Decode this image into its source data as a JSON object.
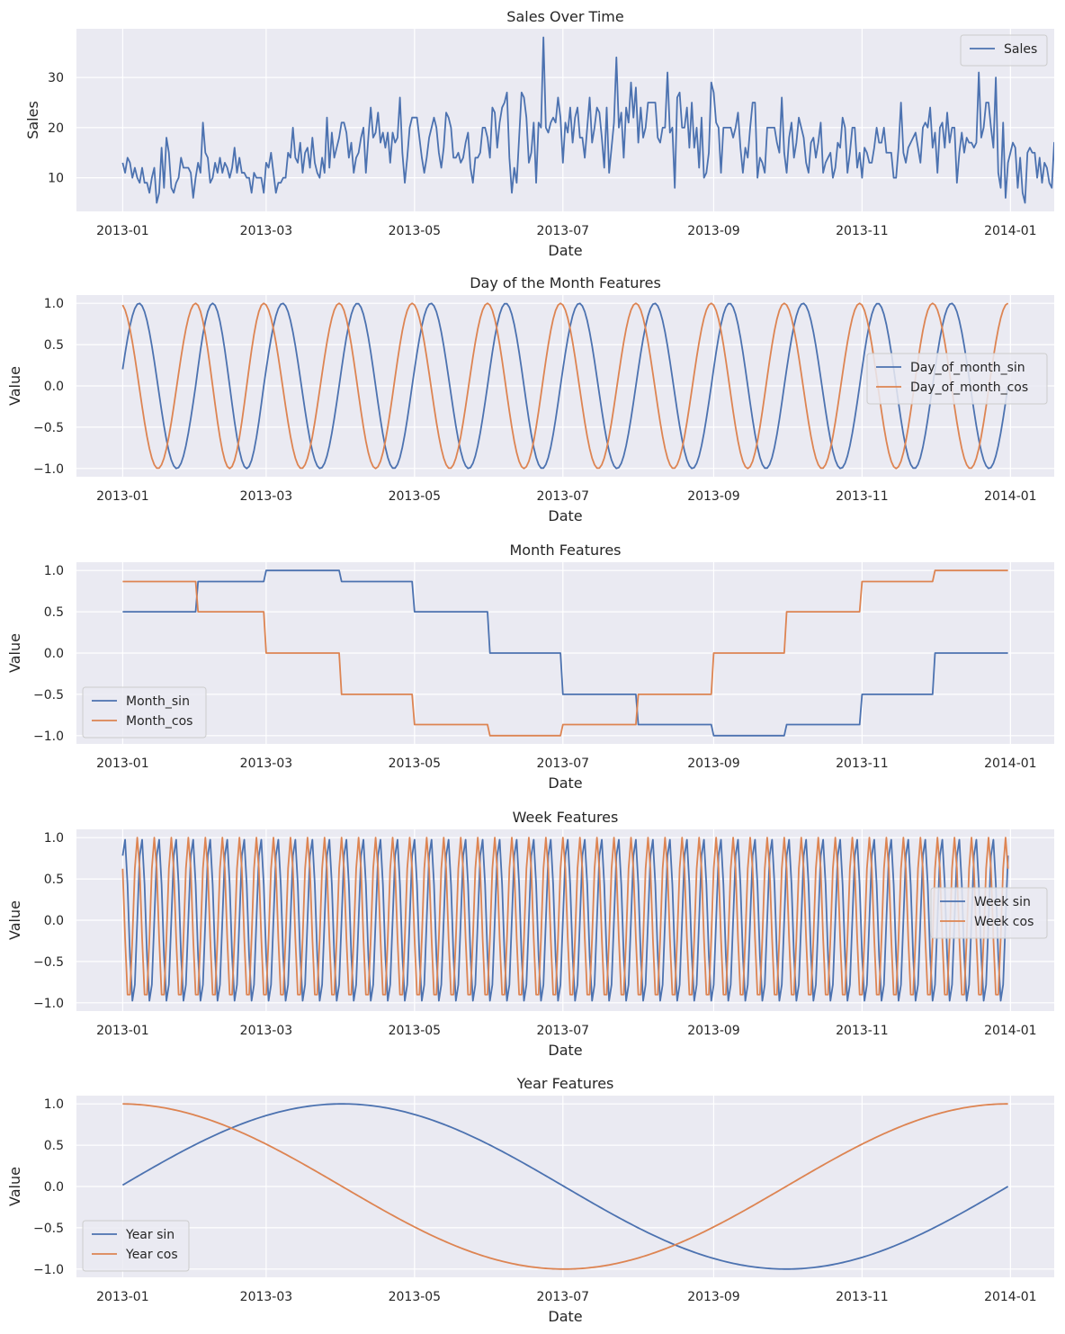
{
  "colors": {
    "series1": "#4c72b0",
    "series2": "#dd8452",
    "plot_bg": "#eaeaf2",
    "grid": "#ffffff",
    "text": "#262626"
  },
  "chart_data": [
    {
      "type": "line",
      "title": "Sales Over Time",
      "xlabel": "Date",
      "ylabel": "Sales",
      "x_range": [
        "2012-12-13",
        "2014-01-19"
      ],
      "ylim": [
        3.3,
        39.7
      ],
      "xticks": [
        "2013-01",
        "2013-03",
        "2013-05",
        "2013-07",
        "2013-09",
        "2013-11",
        "2014-01"
      ],
      "yticks": [
        10,
        20,
        30
      ],
      "grid": true,
      "legend": "top-right",
      "series": [
        {
          "name": "Sales",
          "generator": "sales",
          "x_start": "2013-01-01",
          "x_end": "2013-12-31",
          "values": [
            13,
            11,
            14,
            13,
            10,
            12,
            10,
            9,
            12,
            9,
            9,
            7,
            10,
            12,
            5,
            7,
            16,
            8,
            18,
            15,
            8,
            7,
            9,
            10,
            14,
            12,
            12,
            12,
            11,
            6,
            10,
            13,
            11,
            21,
            15,
            14,
            9,
            10,
            13,
            11,
            14,
            11,
            13,
            12,
            10,
            12,
            16,
            11,
            14,
            11,
            11,
            10,
            10,
            7,
            11,
            10,
            10,
            10,
            7,
            13,
            12,
            15,
            11,
            7,
            9,
            9,
            10,
            10,
            15,
            14,
            20,
            14,
            13,
            17,
            11,
            15,
            16,
            12,
            18,
            13,
            11,
            10,
            14,
            11,
            22,
            12,
            19,
            14,
            16,
            18,
            21,
            21,
            19,
            14,
            17,
            11,
            14,
            15,
            18,
            20,
            11,
            18,
            24,
            18,
            19,
            23,
            17,
            19,
            16,
            19,
            13,
            19,
            17,
            18,
            26,
            15,
            9,
            14,
            20,
            22,
            22,
            22,
            18,
            14,
            11,
            14,
            18,
            20,
            22,
            20,
            15,
            12,
            16,
            23,
            22,
            20,
            14,
            14,
            15,
            13,
            14,
            17,
            19,
            12,
            9,
            14,
            14,
            15,
            20,
            20,
            18,
            14,
            24,
            23,
            16,
            21,
            24,
            25,
            27,
            14,
            7,
            12,
            9,
            18,
            27,
            26,
            22,
            13,
            15,
            21,
            9,
            21,
            20,
            38,
            20,
            19,
            21,
            22,
            21,
            26,
            22,
            13,
            21,
            19,
            24,
            17,
            22,
            24,
            18,
            18,
            14,
            20,
            26,
            17,
            20,
            24,
            23,
            18,
            12,
            24,
            11,
            16,
            21,
            34,
            20,
            23,
            14,
            24,
            21,
            29,
            22,
            28,
            17,
            24,
            18,
            20,
            25,
            25,
            25,
            25,
            18,
            17,
            20,
            20,
            31,
            19,
            20,
            8,
            26,
            27,
            20,
            20,
            24,
            16,
            25,
            16,
            20,
            12,
            22,
            10,
            11,
            15,
            29,
            27,
            21,
            20,
            11,
            20,
            20,
            20,
            20,
            18,
            20,
            23,
            16,
            11,
            16,
            14,
            20,
            25,
            25,
            10,
            14,
            13,
            11,
            20,
            20,
            20,
            20,
            17,
            15,
            26,
            15,
            11,
            18,
            21,
            14,
            17,
            22,
            20,
            18,
            13,
            11,
            17,
            18,
            14,
            17,
            21,
            11,
            13,
            14,
            15,
            10,
            12,
            17,
            16,
            22,
            20,
            11,
            15,
            20,
            20,
            12,
            15,
            10,
            16,
            15,
            13,
            13,
            16,
            20,
            17,
            17,
            20,
            15,
            15,
            15,
            10,
            10,
            16,
            25,
            15,
            13,
            16,
            17,
            18,
            19,
            16,
            13,
            20,
            21,
            20,
            24,
            16,
            19,
            11,
            20,
            21,
            16,
            23,
            17,
            20,
            20,
            9,
            15,
            19,
            15,
            18,
            17,
            17,
            16,
            17,
            31,
            18,
            20,
            25,
            25,
            20,
            16,
            30,
            11,
            8,
            21,
            6,
            13,
            15,
            17,
            16,
            8,
            14,
            7,
            5,
            15,
            16,
            15,
            15,
            10,
            14,
            9,
            13,
            12,
            9,
            8,
            17,
            6,
            15,
            18,
            17,
            14,
            5,
            15
          ]
        }
      ]
    },
    {
      "type": "line",
      "title": "Day of the Month Features",
      "xlabel": "Date",
      "ylabel": "Value",
      "x_range": [
        "2012-12-13",
        "2014-01-19"
      ],
      "ylim": [
        -1.1,
        1.1
      ],
      "xticks": [
        "2013-01",
        "2013-03",
        "2013-05",
        "2013-07",
        "2013-09",
        "2013-11",
        "2014-01"
      ],
      "yticks": [
        -1.0,
        -0.5,
        0.0,
        0.5,
        1.0
      ],
      "grid": true,
      "legend": "center-right",
      "series": [
        {
          "name": "Day_of_month_sin",
          "generator": "dom_sin",
          "x_start": "2013-01-01",
          "x_end": "2013-12-31"
        },
        {
          "name": "Day_of_month_cos",
          "generator": "dom_cos",
          "x_start": "2013-01-01",
          "x_end": "2013-12-31"
        }
      ]
    },
    {
      "type": "line",
      "title": "Month Features",
      "xlabel": "Date",
      "ylabel": "Value",
      "x_range": [
        "2012-12-13",
        "2014-01-19"
      ],
      "ylim": [
        -1.1,
        1.1
      ],
      "xticks": [
        "2013-01",
        "2013-03",
        "2013-05",
        "2013-07",
        "2013-09",
        "2013-11",
        "2014-01"
      ],
      "yticks": [
        -1.0,
        -0.5,
        0.0,
        0.5,
        1.0
      ],
      "grid": true,
      "legend": "lower-left",
      "series": [
        {
          "name": "Month_sin",
          "generator": "month_sin",
          "x_start": "2013-01-01",
          "x_end": "2013-12-31"
        },
        {
          "name": "Month_cos",
          "generator": "month_cos",
          "x_start": "2013-01-01",
          "x_end": "2013-12-31"
        }
      ]
    },
    {
      "type": "line",
      "title": "Week Features",
      "xlabel": "Date",
      "ylabel": "Value",
      "x_range": [
        "2012-12-13",
        "2014-01-19"
      ],
      "ylim": [
        -1.1,
        1.1
      ],
      "xticks": [
        "2013-01",
        "2013-03",
        "2013-05",
        "2013-07",
        "2013-09",
        "2013-11",
        "2014-01"
      ],
      "yticks": [
        -1.0,
        -0.5,
        0.0,
        0.5,
        1.0
      ],
      "grid": true,
      "legend": "center-right",
      "series": [
        {
          "name": "Week sin",
          "generator": "week_sin",
          "x_start": "2013-01-01",
          "x_end": "2013-12-31"
        },
        {
          "name": "Week cos",
          "generator": "week_cos",
          "x_start": "2013-01-01",
          "x_end": "2013-12-31"
        }
      ]
    },
    {
      "type": "line",
      "title": "Year Features",
      "xlabel": "Date",
      "ylabel": "Value",
      "x_range": [
        "2012-12-13",
        "2014-01-19"
      ],
      "ylim": [
        -1.1,
        1.1
      ],
      "xticks": [
        "2013-01",
        "2013-03",
        "2013-05",
        "2013-07",
        "2013-09",
        "2013-11",
        "2014-01"
      ],
      "yticks": [
        -1.0,
        -0.5,
        0.0,
        0.5,
        1.0
      ],
      "grid": true,
      "legend": "lower-left",
      "series": [
        {
          "name": "Year sin",
          "generator": "year_sin",
          "x_start": "2013-01-01",
          "x_end": "2013-12-31"
        },
        {
          "name": "Year cos",
          "generator": "year_cos",
          "x_start": "2013-01-01",
          "x_end": "2013-12-31"
        }
      ]
    }
  ]
}
